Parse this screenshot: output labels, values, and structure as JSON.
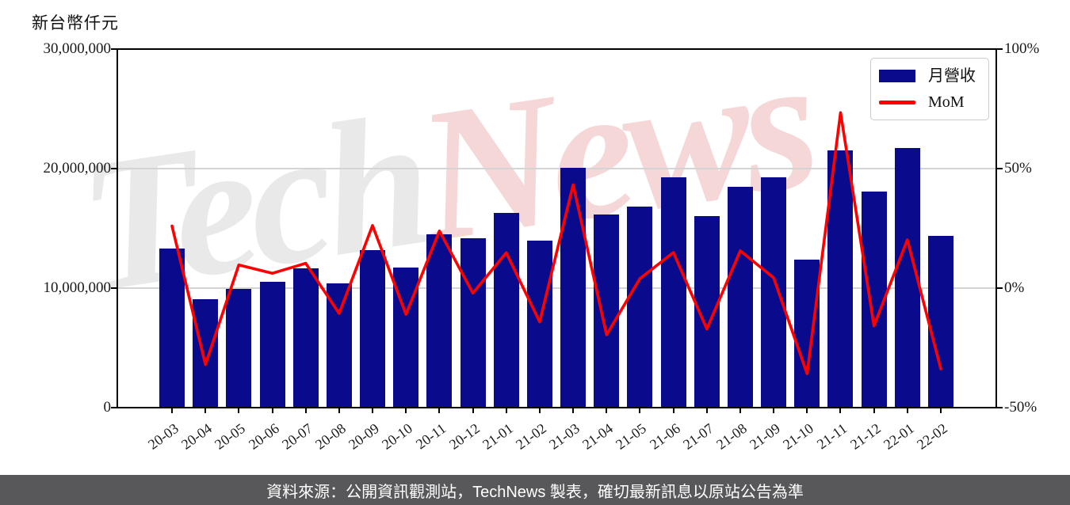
{
  "title": "新台幣仟元",
  "watermark": {
    "gray": "Tech",
    "pink": "News"
  },
  "footer": {
    "text": "資料來源：公開資訊觀測站，TechNews 製表，確切最新訊息以原站公告為準"
  },
  "colors": {
    "bar": "#0a0a8c",
    "line": "#ff0000",
    "grid": "#d4d4d4",
    "footer_bg": "#58585a",
    "watermark_gray": "#e9e9e9",
    "watermark_pink": "#f6d7d7"
  },
  "chart_data": {
    "type": "bar",
    "title": "新台幣仟元",
    "categories": [
      "20-03",
      "20-04",
      "20-05",
      "20-06",
      "20-07",
      "20-08",
      "20-09",
      "20-10",
      "20-11",
      "20-12",
      "21-01",
      "21-02",
      "21-03",
      "21-04",
      "21-05",
      "21-06",
      "21-07",
      "21-08",
      "21-09",
      "21-10",
      "21-11",
      "21-12",
      "22-01",
      "22-02"
    ],
    "series": [
      {
        "name": "月營收",
        "type": "bar",
        "axis": "left",
        "color": "#0a0a8c",
        "values": [
          13300000,
          9050000,
          9930000,
          10550000,
          11650000,
          10420000,
          13150000,
          11700000,
          14500000,
          14200000,
          16300000,
          14000000,
          20050000,
          16150000,
          16800000,
          19300000,
          16000000,
          18500000,
          19300000,
          12400000,
          21500000,
          18100000,
          21750000,
          14400000
        ]
      },
      {
        "name": "MoM",
        "type": "line",
        "axis": "right",
        "color": "#ff0000",
        "values": [
          26,
          -32,
          9.7,
          6.2,
          10.4,
          -10.6,
          26.2,
          -11.0,
          23.9,
          -2.1,
          14.8,
          -14.1,
          43.2,
          -19.5,
          4.0,
          14.9,
          -17.1,
          15.6,
          4.3,
          -35.8,
          73.4,
          -15.8,
          20.2,
          -33.8
        ]
      }
    ],
    "left_axis": {
      "label": "新台幣仟元",
      "min": 0,
      "max": 30000000,
      "ticks": [
        0,
        10000000,
        20000000,
        30000000
      ],
      "tick_labels": [
        "0",
        "10,000,000",
        "20,000,000",
        "30,000,000"
      ]
    },
    "right_axis": {
      "min": -50,
      "max": 100,
      "ticks": [
        -50,
        0,
        50,
        100
      ],
      "tick_labels": [
        "-50%",
        "0%",
        "50%",
        "100%"
      ]
    },
    "legend_position": "upper-right",
    "grid": "horizontal"
  }
}
